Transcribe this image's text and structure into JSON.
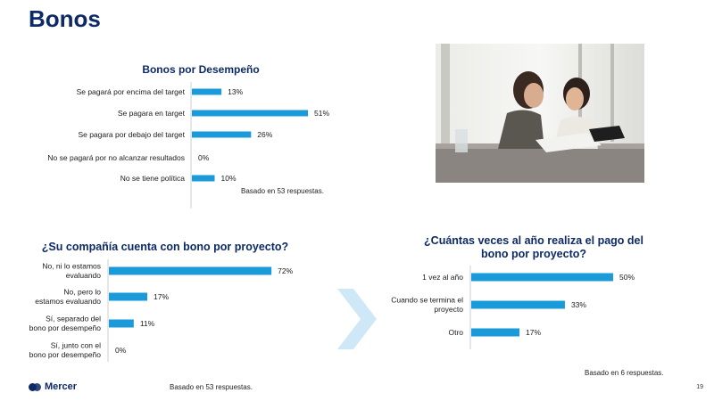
{
  "page": {
    "title": "Bonos",
    "page_number": "19",
    "brand": "Mercer",
    "accent_color": "#1a9ad9",
    "title_color": "#0d2a66"
  },
  "chart_data": [
    {
      "type": "bar",
      "orientation": "horizontal",
      "title": "Bonos por Desempeño",
      "categories": [
        "Se pagará por encima del target",
        "Se pagara en target",
        "Se pagara por debajo del target",
        "No se pagará por no alcanzar resultados",
        "No se tiene política"
      ],
      "values": [
        13,
        51,
        26,
        0,
        10
      ],
      "value_labels": [
        "13%",
        "51%",
        "26%",
        "0%",
        "10%"
      ],
      "note": "Basado en 53 respuestas.",
      "grid": false
    },
    {
      "type": "bar",
      "orientation": "horizontal",
      "title": "¿Su compañía cuenta con bono por proyecto?",
      "categories": [
        "No, ni lo estamos evaluando",
        "No, pero lo estamos evaluando",
        "Sí, separado del bono por desempeño",
        "Sí, junto con el bono por desempeño"
      ],
      "values": [
        72,
        17,
        11,
        0
      ],
      "value_labels": [
        "72%",
        "17%",
        "11%",
        "0%"
      ],
      "note": "Basado en 53 respuestas.",
      "grid": false
    },
    {
      "type": "bar",
      "orientation": "horizontal",
      "title": "¿Cuántas veces al año realiza el pago del bono por proyecto?",
      "categories": [
        "1 vez al año",
        "Cuando se termina el proyecto",
        "Otro"
      ],
      "values": [
        50,
        33,
        17
      ],
      "value_labels": [
        "50%",
        "33%",
        "17%"
      ],
      "note": "Basado en 6 respuestas.",
      "grid": false
    }
  ]
}
